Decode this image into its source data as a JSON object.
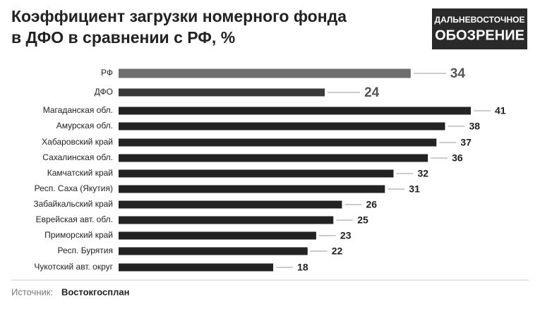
{
  "chart_data": {
    "type": "bar",
    "orientation": "horizontal",
    "title": [
      "Коэффициент загрузки номерного фонда",
      "в ДФО в сравнении с РФ, %"
    ],
    "logo": [
      "ДАЛЬНЕВОСТОЧНОЕ",
      "ОБОЗРЕНИЕ"
    ],
    "categories": [
      "РФ",
      "ДФО",
      "Магаданская обл.",
      "Амурская обл.",
      "Хабаровский край",
      "Сахалинская обл.",
      "Камчатский край",
      "Респ. Саха (Якутия)",
      "Забайкальский край",
      "Еврейская авт. обл.",
      "Приморский край",
      "Респ. Бурятия",
      "Чукотский авт. округ"
    ],
    "values": [
      34,
      24,
      41,
      38,
      37,
      36,
      32,
      31,
      26,
      25,
      23,
      22,
      18
    ],
    "colors": [
      "#6e6e6e",
      "#3a3a3a",
      "#232323",
      "#232323",
      "#232323",
      "#232323",
      "#232323",
      "#232323",
      "#232323",
      "#232323",
      "#232323",
      "#232323",
      "#232323"
    ],
    "source_label": "Источник:",
    "source": "Востокгосплан"
  }
}
